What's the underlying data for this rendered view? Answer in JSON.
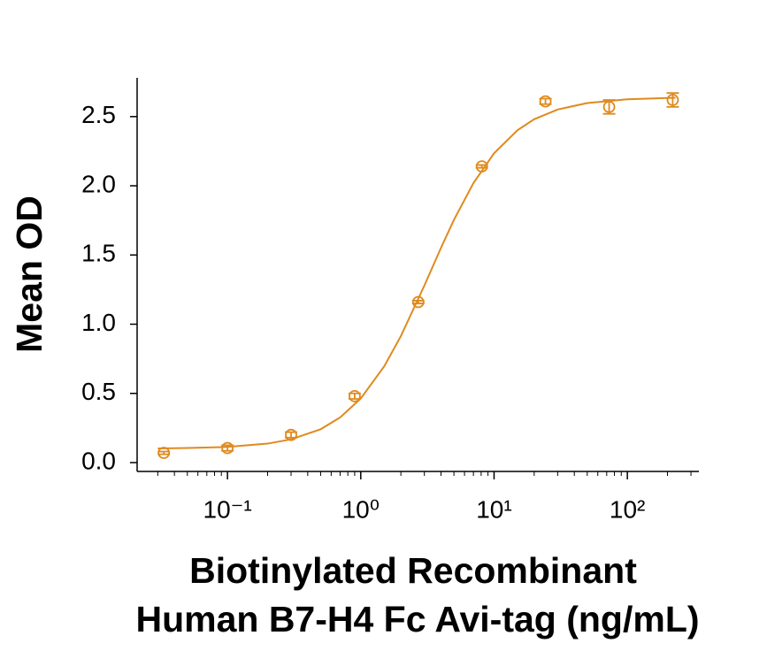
{
  "chart_data": {
    "type": "scatter",
    "ylabel": "Mean OD",
    "xlabel": [
      "Biotinylated Recombinant",
      "Human B7-H4 Fc Avi-tag (ng/mL)"
    ],
    "color": "#e08a1e",
    "log_x": true,
    "xlim": [
      0.021,
      344
    ],
    "ylim": [
      -0.064,
      2.78
    ],
    "xticks": [
      {
        "value": 0.1,
        "label": "10⁻¹"
      },
      {
        "value": 1,
        "label": "10⁰"
      },
      {
        "value": 10,
        "label": "10¹"
      },
      {
        "value": 100,
        "label": "10²"
      }
    ],
    "xminorticks": [
      0.03,
      0.04,
      0.05,
      0.06,
      0.07,
      0.08,
      0.09,
      0.2,
      0.3,
      0.4,
      0.5,
      0.6,
      0.7,
      0.8,
      0.9,
      2,
      3,
      4,
      5,
      6,
      7,
      8,
      9,
      20,
      30,
      40,
      50,
      60,
      70,
      80,
      90,
      200,
      300
    ],
    "yticks": [
      {
        "value": 0,
        "label": "0.0"
      },
      0.5,
      {
        "value": 1,
        "label": "1.0"
      },
      1.5,
      {
        "value": 2,
        "label": "2.0"
      },
      2.5
    ],
    "points": {
      "x": [
        0.0333,
        0.1,
        0.3,
        0.9,
        2.7,
        8.1,
        24.3,
        73,
        219
      ],
      "values": [
        0.07,
        0.105,
        0.2,
        0.48,
        1.16,
        2.14,
        2.61,
        2.57,
        2.62
      ],
      "errors": [
        0.01,
        0.02,
        0.02,
        0.02,
        0.01,
        0.01,
        0.02,
        0.05,
        0.05
      ]
    },
    "fit": {
      "x": [
        0.03,
        0.05,
        0.1,
        0.2,
        0.3,
        0.5,
        0.7,
        1,
        1.5,
        2,
        3,
        4,
        5,
        7,
        10,
        15,
        20,
        30,
        50,
        100,
        230
      ],
      "values": [
        0.102,
        0.105,
        0.113,
        0.137,
        0.168,
        0.241,
        0.326,
        0.463,
        0.696,
        0.914,
        1.279,
        1.552,
        1.754,
        2.019,
        2.235,
        2.402,
        2.481,
        2.551,
        2.598,
        2.625,
        2.636
      ]
    }
  }
}
